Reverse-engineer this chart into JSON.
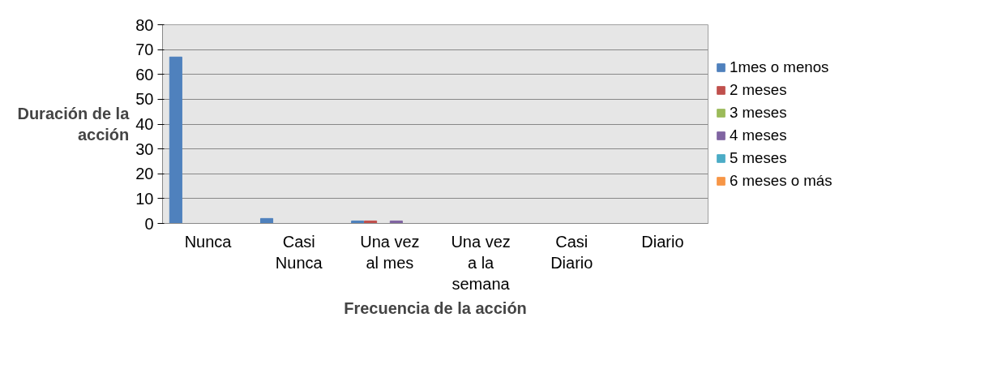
{
  "chart_data": {
    "type": "bar",
    "xlabel": "Frecuencia de la acción",
    "ylabel": "Duración de la acción",
    "categories": [
      "Nunca",
      "Casi Nunca",
      "Una vez al mes",
      "Una vez a la semana",
      "Casi Diario",
      "Diario"
    ],
    "series": [
      {
        "name": "1mes o menos",
        "color": "#4f81bd",
        "values": [
          67,
          2,
          1,
          0,
          0,
          0
        ]
      },
      {
        "name": "2 meses",
        "color": "#c0504d",
        "values": [
          0,
          0,
          1,
          0,
          0,
          0
        ]
      },
      {
        "name": "3 meses",
        "color": "#9bbb59",
        "values": [
          0,
          0,
          0,
          0,
          0,
          0
        ]
      },
      {
        "name": "4 meses",
        "color": "#8064a2",
        "values": [
          0,
          0,
          1,
          0,
          0,
          0
        ]
      },
      {
        "name": "5 meses",
        "color": "#4bacc6",
        "values": [
          0,
          0,
          0,
          0,
          0,
          0
        ]
      },
      {
        "name": "6 meses o más",
        "color": "#f79646",
        "values": [
          0,
          0,
          0,
          0,
          0,
          0
        ]
      }
    ],
    "ylim": [
      0,
      80
    ],
    "yticks": [
      0,
      10,
      20,
      30,
      40,
      50,
      60,
      70,
      80
    ],
    "grid": "y",
    "legend": "right"
  }
}
